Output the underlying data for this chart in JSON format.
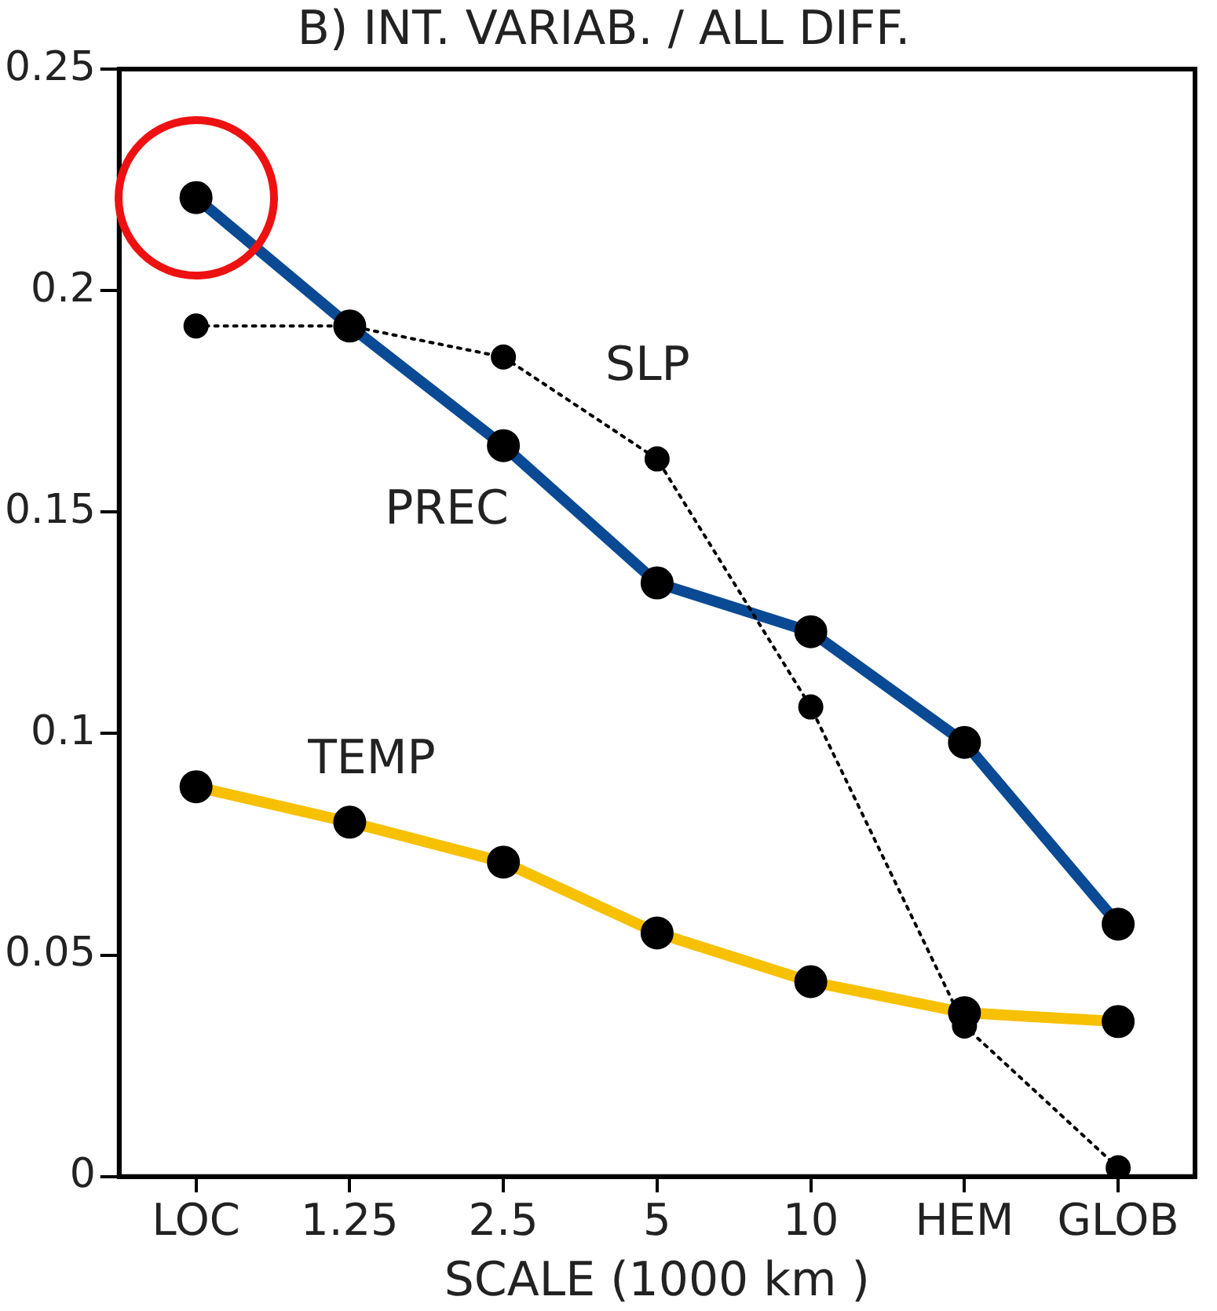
{
  "chart_data": {
    "type": "line",
    "title": "B) INT. VARIAB. / ALL DIFF.",
    "xlabel": "SCALE (1000 km )",
    "categories": [
      "LOC",
      "1.25",
      "2.5",
      "5",
      "10",
      "HEM",
      "GLOB"
    ],
    "series": [
      {
        "name": "SLP",
        "color": "#000000",
        "line_style": "dotted",
        "values": [
          0.192,
          0.192,
          0.185,
          0.162,
          0.106,
          0.034,
          0.002
        ]
      },
      {
        "name": "PREC",
        "color": "#0a4a94",
        "line_style": "solid",
        "values": [
          0.221,
          0.192,
          0.165,
          0.134,
          0.123,
          0.098,
          0.057
        ]
      },
      {
        "name": "TEMP",
        "color": "#f7c000",
        "line_style": "solid",
        "values": [
          0.088,
          0.08,
          0.071,
          0.055,
          0.044,
          0.037,
          0.035
        ]
      }
    ],
    "ylim": [
      0,
      0.25
    ],
    "yticks": [
      0,
      0.05,
      0.1,
      0.15,
      0.2,
      0.25
    ],
    "grid": false,
    "legend": false,
    "marker": "circle"
  }
}
